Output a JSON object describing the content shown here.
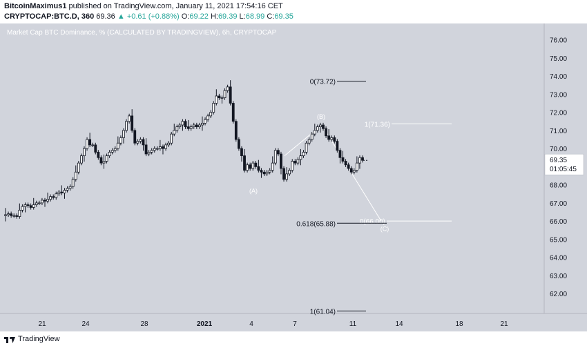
{
  "header": {
    "author": "BitcoinMaximus1",
    "published_text": " published on TradingView.com, January 11, 2021 17:54:16 CET",
    "symbol": "CRYPTOCAP:BTC.D, 360",
    "last": "69.36",
    "up_arrow": "▲",
    "change": "+0.61 (+0.88%)",
    "o_label": "O:",
    "o_val": "69.22",
    "h_label": "H:",
    "h_val": "69.39",
    "l_label": "L:",
    "l_val": "68.99",
    "c_label": "C:",
    "c_val": "69.35"
  },
  "footer": {
    "brand": "TradingView"
  },
  "chart_data": {
    "type": "candlestick",
    "title": "Market Cap BTC Dominance, % (CALCULATED BY TRADINGVIEW), 6h, CRYPTOCAP",
    "ylim": [
      60.9,
      76.9
    ],
    "y_ticks": [
      "76.00",
      "75.00",
      "74.00",
      "73.00",
      "72.00",
      "71.00",
      "70.00",
      "69.00",
      "68.00",
      "67.00",
      "66.00",
      "65.00",
      "64.00",
      "63.00",
      "62.00"
    ],
    "x_ticks": [
      "21",
      "24",
      "28",
      "2021",
      "4",
      "7",
      "11",
      "14",
      "18",
      "21"
    ],
    "price_label": "69.35",
    "countdown_label": "01:05:45",
    "closes": [
      66.35,
      66.4,
      66.3,
      66.3,
      66.25,
      66.6,
      66.8,
      66.9,
      66.85,
      66.75,
      66.9,
      67.0,
      67.0,
      67.15,
      67.1,
      67.2,
      67.35,
      67.3,
      67.5,
      67.6,
      67.55,
      67.7,
      67.8,
      67.9,
      68.3,
      68.7,
      69.2,
      69.6,
      70.0,
      70.5,
      70.2,
      70.2,
      69.8,
      69.5,
      69.2,
      69.3,
      69.6,
      69.8,
      69.9,
      70.0,
      70.3,
      70.6,
      71.0,
      71.5,
      71.8,
      71.0,
      70.3,
      70.4,
      70.5,
      70.2,
      69.7,
      69.8,
      69.9,
      70.0,
      70.0,
      70.1,
      70.0,
      70.2,
      70.3,
      70.8,
      71.0,
      71.2,
      71.3,
      71.5,
      71.2,
      71.1,
      71.2,
      71.3,
      71.2,
      71.3,
      71.4,
      71.6,
      71.8,
      72.0,
      72.5,
      72.9,
      72.8,
      72.8,
      73.2,
      73.4,
      72.5,
      71.5,
      70.5,
      70.0,
      69.6,
      68.8,
      69.1,
      68.9,
      69.2,
      69.0,
      68.8,
      68.7,
      68.6,
      68.7,
      68.8,
      69.2,
      69.9,
      69.7,
      68.9,
      68.3,
      68.6,
      68.8,
      69.3,
      69.2,
      69.4,
      69.6,
      69.8,
      70.3,
      70.5,
      70.8,
      71.0,
      71.2,
      71.3,
      71.1,
      70.7,
      70.5,
      70.6,
      70.4,
      69.9,
      69.5,
      69.3,
      69.1,
      68.9,
      68.7,
      68.8,
      69.2,
      69.5,
      69.35
    ],
    "levels": [
      {
        "label": "0(73.72)",
        "value": 73.72
      },
      {
        "label": "1(71.36)",
        "value": 71.36
      },
      {
        "label": "0(66.00)",
        "value": 66.0
      },
      {
        "label": "0.618(65.88)",
        "value": 65.88
      },
      {
        "label": "1(61.04)",
        "value": 61.04
      }
    ],
    "wave_labels": [
      {
        "label": "(A)",
        "value": 67.7
      },
      {
        "label": "(B)",
        "value": 71.8
      },
      {
        "label": "(C)",
        "value": 65.6
      }
    ],
    "projection": [
      {
        "from": "(A)",
        "to": "(B)"
      },
      {
        "from": "(B)",
        "to": "(C)"
      }
    ]
  }
}
